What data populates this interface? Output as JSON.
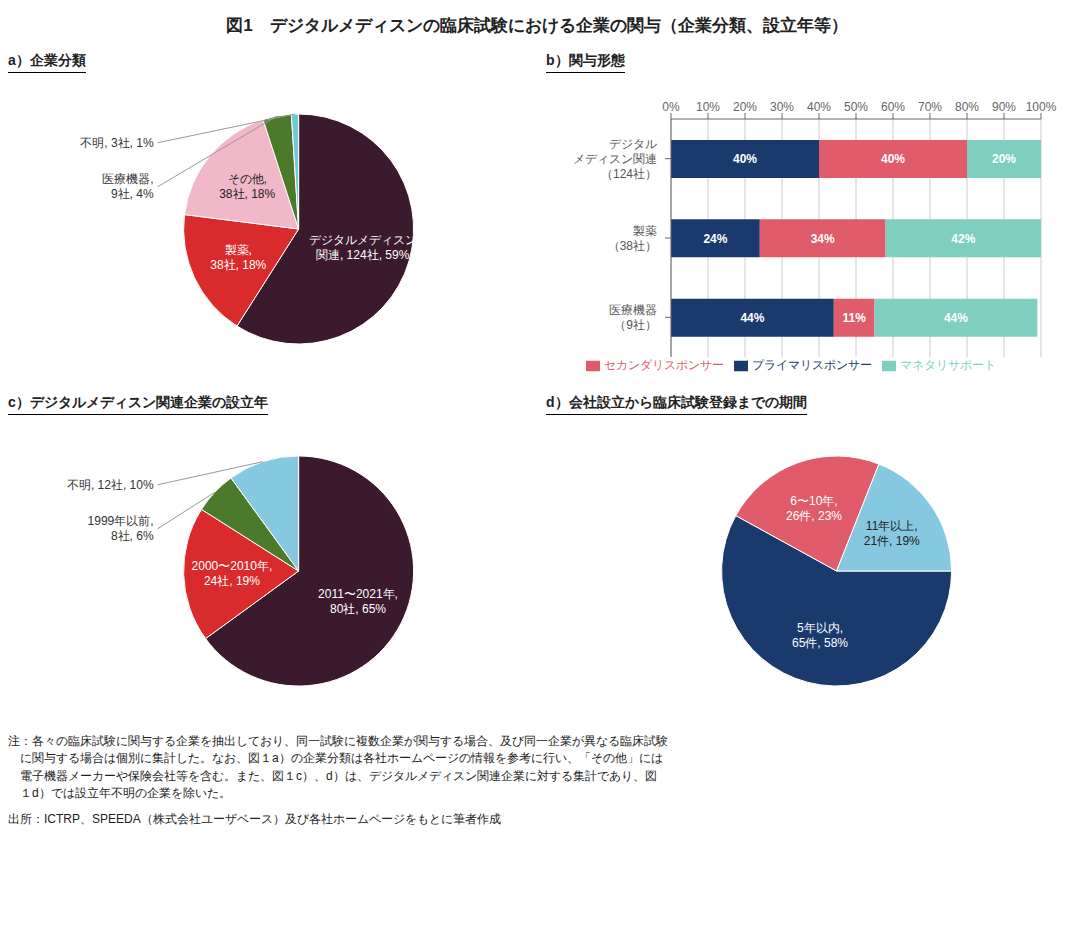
{
  "title": "図1　デジタルメディスンの臨床試験における企業の関与（企業分類、設立年等）",
  "annotations": [
    "注：各々の臨床試験に関与する企業を抽出しており、同一試験に複数企業が関与する場合、及び同一企業が異なる臨床試験\n　に関与する場合は個別に集計した。なお、図１a）の企業分類は各社ホームページの情報を参考に行い、「その他」には\n　電子機器メーカーや保険会社等を含む。また、図１c）、d）は、デジタルメディスン関連企業に対する集計であり、図\n　１d）では設立年不明の企業を除いた。",
    "出所：ICTRP、SPEEDA（株式会社ユーザベース）及び各社ホームページをもとに筆者作成"
  ],
  "chart_data": [
    {
      "type": "pie",
      "title": "a）企業分類",
      "values": [
        59,
        18,
        18,
        4,
        1
      ],
      "value_labels": [
        "デジタルメディスン\n関連, 124社, 59%",
        "製薬,\n38社, 18%",
        "その他,\n38社, 18%",
        "医療機器,\n9社, 4%",
        "不明, 3社, 1%"
      ],
      "colors": [
        "#3b1a2e",
        "#d92b2b",
        "#f0b8c8",
        "#4a7a2a",
        "#6ecad6"
      ],
      "data_labels": true
    },
    {
      "type": "bar",
      "title": "b）関与形態",
      "orientation": "horizontal",
      "stacked": true,
      "categories": [
        "デジタル\nメディスン関連\n（124社）",
        "製薬\n（38社）",
        "医療機器\n（9社）"
      ],
      "series": [
        {
          "name": "プライマリスポンサー",
          "color": "#1a3a6e",
          "values": [
            40,
            24,
            44
          ],
          "value_labels": [
            "40%",
            "24%",
            "44%"
          ]
        },
        {
          "name": "セカンダリスポンサー",
          "color": "#e05c6a",
          "values": [
            40,
            34,
            11
          ],
          "value_labels": [
            "40%",
            "34%",
            "11%"
          ]
        },
        {
          "name": "マネタリサポート",
          "color": "#7ecfbf",
          "values": [
            20,
            42,
            44
          ],
          "value_labels": [
            "20%",
            "42%",
            "44%"
          ]
        }
      ],
      "xlim": [
        0,
        100
      ],
      "xticks": [
        {
          "value": 0,
          "label": "0%"
        },
        {
          "value": 10,
          "label": "10%"
        },
        {
          "value": 20,
          "label": "20%"
        },
        {
          "value": 30,
          "label": "30%"
        },
        {
          "value": 40,
          "label": "40%"
        },
        {
          "value": 50,
          "label": "50%"
        },
        {
          "value": 60,
          "label": "60%"
        },
        {
          "value": 70,
          "label": "70%"
        },
        {
          "value": 80,
          "label": "80%"
        },
        {
          "value": 90,
          "label": "90%"
        },
        {
          "value": 100,
          "label": "100%"
        }
      ],
      "grid": true,
      "legend": "bottom",
      "data_labels": true
    },
    {
      "type": "pie",
      "title": "c）デジタルメディスン関連企業の設立年",
      "values": [
        65,
        19,
        6,
        10
      ],
      "value_labels": [
        "2011〜2021年,\n80社, 65%",
        "2000〜2010年,\n24社, 19%",
        "1999年以前,\n8社, 6%",
        "不明, 12社, 10%"
      ],
      "colors": [
        "#3b1a2e",
        "#d92b2b",
        "#4a7a2a",
        "#85c8e0"
      ],
      "data_labels": true
    },
    {
      "type": "pie",
      "title": "d）会社設立から臨床試験登録までの期間",
      "values": [
        58,
        23,
        19
      ],
      "value_labels": [
        "5年以内,\n65件, 58%",
        "6〜10年,\n26件, 23%",
        "11年以上,\n21件, 19%"
      ],
      "colors": [
        "#1a3a6e",
        "#e05c6a",
        "#85c8e0"
      ],
      "data_labels": true
    }
  ]
}
